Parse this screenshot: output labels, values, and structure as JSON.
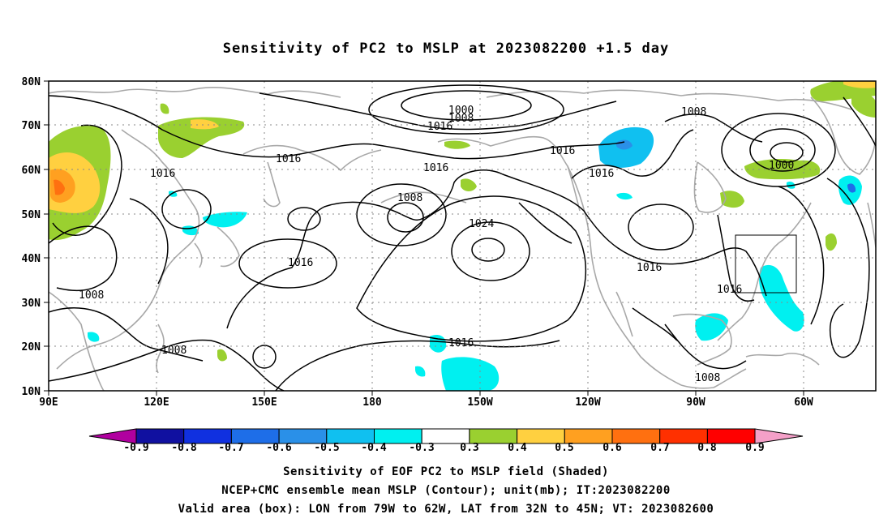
{
  "title": "Sensitivity of PC2 to MSLP at 2023082200 +1.5 day",
  "lat_labels": [
    "80N",
    "70N",
    "60N",
    "50N",
    "40N",
    "30N",
    "20N",
    "10N"
  ],
  "lon_labels": [
    "90E",
    "120E",
    "150E",
    "180",
    "150W",
    "120W",
    "90W",
    "60W"
  ],
  "contour_labels": [
    {
      "text": "1000",
      "id": "c1000a"
    },
    {
      "text": "1008",
      "id": "c1008a"
    },
    {
      "text": "1016",
      "id": "c1016a"
    },
    {
      "text": "1008",
      "id": "c1008b"
    },
    {
      "text": "1000",
      "id": "c1000b"
    },
    {
      "text": "1016",
      "id": "c1016b"
    },
    {
      "text": "1016",
      "id": "c1016c"
    },
    {
      "text": "1016",
      "id": "c1016d"
    },
    {
      "text": "1016",
      "id": "c1016e"
    },
    {
      "text": "1008",
      "id": "c1008c"
    },
    {
      "text": "1024",
      "id": "c1024"
    },
    {
      "text": "1016",
      "id": "c1016f"
    },
    {
      "text": "1016",
      "id": "c1016g"
    },
    {
      "text": "1016",
      "id": "c1016h"
    },
    {
      "text": "1008",
      "id": "c1008d"
    },
    {
      "text": "1008",
      "id": "c1008e"
    },
    {
      "text": "1016",
      "id": "c1016i"
    },
    {
      "text": "1008",
      "id": "c1008f"
    },
    {
      "text": "1016",
      "id": "c1016j"
    }
  ],
  "colorbar": {
    "ticks": [
      "-0.9",
      "-0.8",
      "-0.7",
      "-0.6",
      "-0.5",
      "-0.4",
      "-0.3",
      "0.3",
      "0.4",
      "0.5",
      "0.6",
      "0.7",
      "0.8",
      "0.9"
    ],
    "colors": [
      "#b0009f",
      "#1010a0",
      "#1030e0",
      "#1e6ee8",
      "#2a90e8",
      "#10c0f0",
      "#00f0f0",
      "#ffffff",
      "#9ad030",
      "#ffd040",
      "#ffa020",
      "#ff7010",
      "#ff3000",
      "#ff0000",
      "#f4a0c8"
    ]
  },
  "valid_box": {
    "lon_west": -79,
    "lon_east": -62,
    "lat_south": 32,
    "lat_north": 45
  },
  "footer": {
    "line1": "Sensitivity of EOF PC2 to MSLP field (Shaded)",
    "line2": "NCEP+CMC ensemble mean MSLP (Contour); unit(mb); IT:2023082200",
    "line3": "Valid area (box): LON from 79W to 62W, LAT from 32N to 45N; VT: 2023082600"
  }
}
